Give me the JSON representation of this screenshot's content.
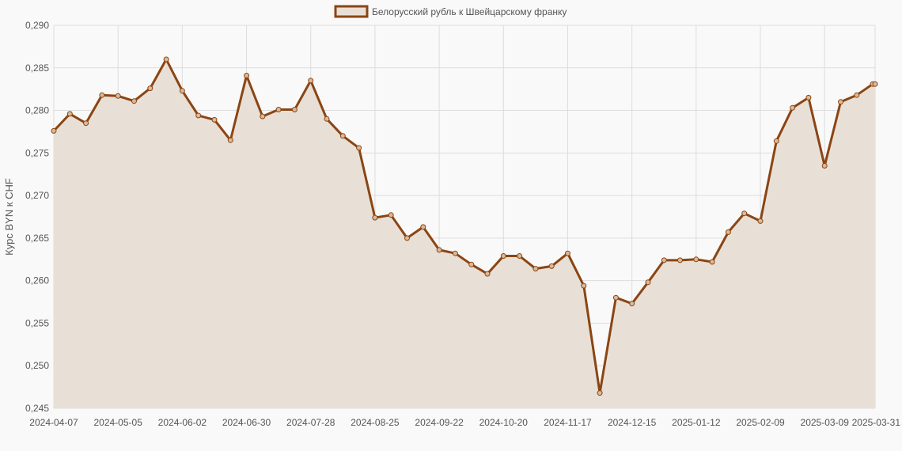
{
  "chart_data": {
    "type": "line",
    "title": "",
    "xlabel": "",
    "ylabel": "Курс BYN к CHF",
    "ylim": [
      0.245,
      0.29
    ],
    "y_ticks": [
      "0,290",
      "0,285",
      "0,280",
      "0,275",
      "0,270",
      "0,265",
      "0,260",
      "0,255",
      "0,250",
      "0,245"
    ],
    "x_tick_labels": [
      "2024-04-07",
      "2024-05-05",
      "2024-06-02",
      "2024-06-30",
      "2024-07-28",
      "2024-08-25",
      "2024-09-22",
      "2024-10-20",
      "2024-11-17",
      "2024-12-15",
      "2025-01-12",
      "2025-02-09",
      "2025-03-09",
      "2025-03-31"
    ],
    "grid": true,
    "legend_position": "top-center",
    "colors": {
      "line": "#8b4513",
      "fill": "#e8e0d6",
      "grid": "#dddddd"
    },
    "series": [
      {
        "name": "Белорусский рубль к Швейцарскому франку",
        "x": [
          "2024-04-07",
          "2024-04-14",
          "2024-04-21",
          "2024-04-28",
          "2024-05-05",
          "2024-05-12",
          "2024-05-19",
          "2024-05-26",
          "2024-06-02",
          "2024-06-09",
          "2024-06-16",
          "2024-06-23",
          "2024-06-30",
          "2024-07-07",
          "2024-07-14",
          "2024-07-21",
          "2024-07-28",
          "2024-08-04",
          "2024-08-11",
          "2024-08-18",
          "2024-08-25",
          "2024-09-01",
          "2024-09-08",
          "2024-09-15",
          "2024-09-22",
          "2024-09-29",
          "2024-10-06",
          "2024-10-13",
          "2024-10-20",
          "2024-10-27",
          "2024-11-03",
          "2024-11-10",
          "2024-11-17",
          "2024-11-24",
          "2024-12-01",
          "2024-12-08",
          "2024-12-15",
          "2024-12-22",
          "2024-12-29",
          "2025-01-05",
          "2025-01-12",
          "2025-01-19",
          "2025-01-26",
          "2025-02-02",
          "2025-02-09",
          "2025-02-16",
          "2025-02-23",
          "2025-03-02",
          "2025-03-09",
          "2025-03-16",
          "2025-03-23",
          "2025-03-30",
          "2025-03-31"
        ],
        "values": [
          0.2776,
          0.2796,
          0.2785,
          0.2818,
          0.2817,
          0.2811,
          0.2826,
          0.286,
          0.2823,
          0.2794,
          0.2789,
          0.2765,
          0.2841,
          0.2793,
          0.2801,
          0.2801,
          0.2835,
          0.279,
          0.277,
          0.2756,
          0.2674,
          0.2677,
          0.265,
          0.2663,
          0.2636,
          0.2632,
          0.2619,
          0.2608,
          0.2629,
          0.2629,
          0.2614,
          0.2617,
          0.2632,
          0.2594,
          0.2468,
          0.258,
          0.2573,
          0.2598,
          0.2624,
          0.2624,
          0.2625,
          0.2622,
          0.2657,
          0.2679,
          0.267,
          0.2764,
          0.2803,
          0.2815,
          0.2735,
          0.281,
          0.2818,
          0.2831,
          0.2831
        ]
      }
    ]
  }
}
